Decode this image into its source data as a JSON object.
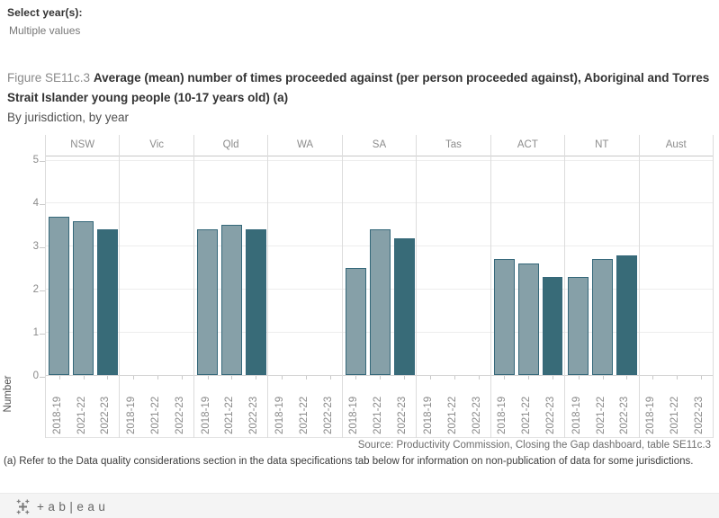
{
  "filter": {
    "label": "Select year(s):",
    "value": "Multiple values"
  },
  "title": {
    "figure_label": "Figure SE11c.3",
    "main": "Average (mean) number of times proceeded against (per person proceeded against), Aboriginal and Torres Strait Islander young people (10-17 years old) (a)",
    "subtitle": "By jurisdiction, by year"
  },
  "chart_data": {
    "type": "bar",
    "ylabel": "Number",
    "ylim": [
      0,
      5.1
    ],
    "yticks": [
      0,
      1,
      2,
      3,
      4,
      5
    ],
    "grid": true,
    "legend": false,
    "categories": [
      "2018-19",
      "2021-22",
      "2022-23"
    ],
    "jurisdictions": [
      "NSW",
      "Vic",
      "Qld",
      "WA",
      "SA",
      "Tas",
      "ACT",
      "NT",
      "Aust"
    ],
    "series": [
      {
        "jurisdiction": "NSW",
        "values": [
          3.7,
          3.6,
          3.4
        ]
      },
      {
        "jurisdiction": "Vic",
        "values": [
          null,
          null,
          null
        ]
      },
      {
        "jurisdiction": "Qld",
        "values": [
          3.4,
          3.5,
          3.4
        ]
      },
      {
        "jurisdiction": "WA",
        "values": [
          null,
          null,
          null
        ]
      },
      {
        "jurisdiction": "SA",
        "values": [
          2.5,
          3.4,
          3.2
        ]
      },
      {
        "jurisdiction": "Tas",
        "values": [
          null,
          null,
          null
        ]
      },
      {
        "jurisdiction": "ACT",
        "values": [
          2.7,
          2.6,
          2.3
        ]
      },
      {
        "jurisdiction": "NT",
        "values": [
          2.3,
          2.7,
          2.8
        ]
      },
      {
        "jurisdiction": "Aust",
        "values": [
          null,
          null,
          null
        ]
      }
    ],
    "colors": {
      "bar_2018_19": "#86A0A8",
      "bar_2021_22": "#86A0A8",
      "bar_2022_23": "#386B78",
      "bar_border": "#35687A"
    }
  },
  "source": "Source: Productivity Commission, Closing the Gap dashboard, table SE11c.3",
  "footnote": "(a) Refer to the Data quality considerations section in the data specifications tab below for information on non-publication of data for some jurisdictions.",
  "footer": {
    "brand": "+ab|eau"
  }
}
